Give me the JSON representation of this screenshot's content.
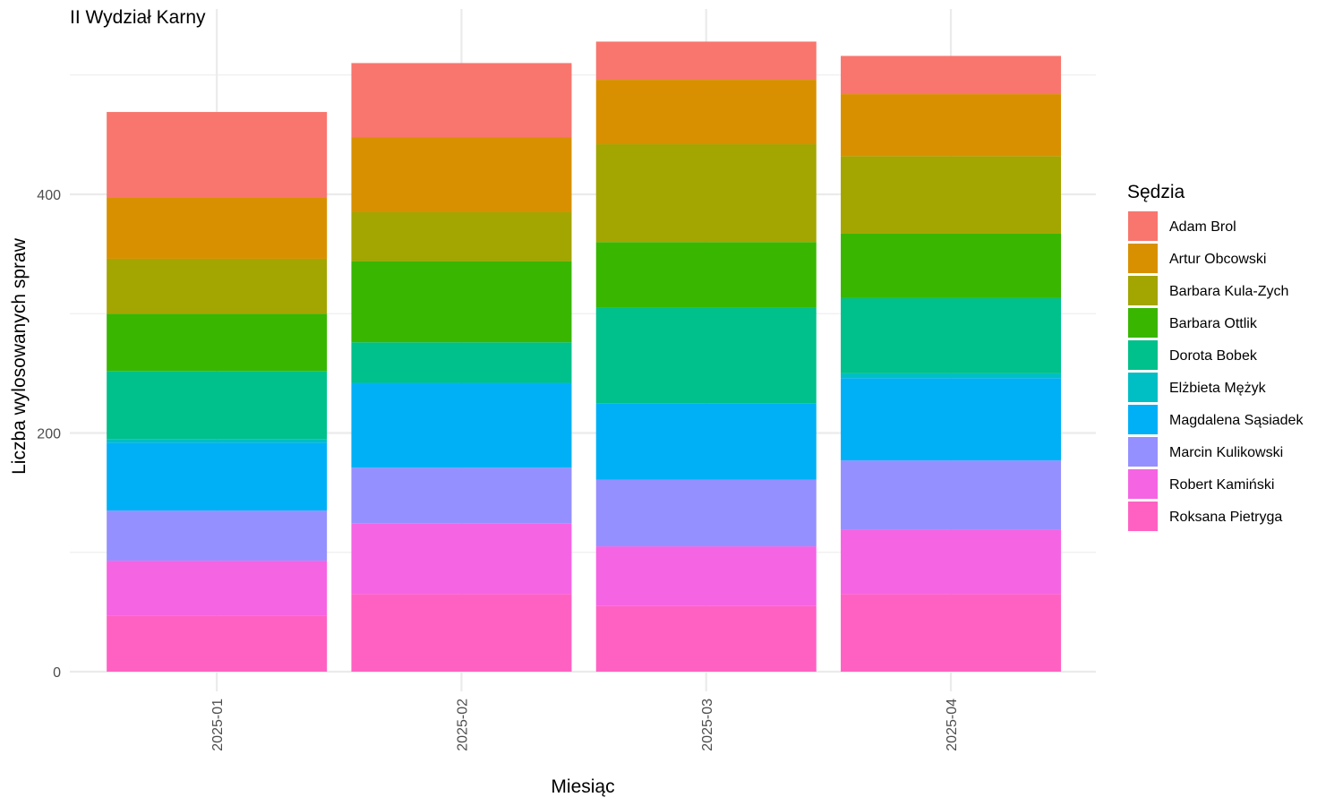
{
  "chart_data": {
    "type": "bar",
    "stacked": true,
    "title": "II Wydział Karny",
    "xlabel": "Miesiąc",
    "ylabel": "Liczba wylosowanych spraw",
    "ylim": [
      0,
      555
    ],
    "yticks": [
      0,
      200,
      400
    ],
    "grid": true,
    "legend_title": "Sędzia",
    "legend_position": "right",
    "categories": [
      "2025-01",
      "2025-02",
      "2025-03",
      "2025-04"
    ],
    "series": [
      {
        "name": "Roksana Pietryga",
        "color": "#FF61C3",
        "values": [
          47,
          65,
          55,
          65
        ]
      },
      {
        "name": "Robert Kamiński",
        "color": "#F564E3",
        "values": [
          46,
          59,
          50,
          54
        ]
      },
      {
        "name": "Marcin Kulikowski",
        "color": "#9590FF",
        "values": [
          42,
          47,
          56,
          58
        ]
      },
      {
        "name": "Magdalena Sąsiadek",
        "color": "#00B0F6",
        "values": [
          57,
          71,
          64,
          69
        ]
      },
      {
        "name": "Elżbieta Mężyk",
        "color": "#00BFC4",
        "values": [
          3,
          0,
          0,
          4
        ]
      },
      {
        "name": "Dorota Bobek",
        "color": "#00C08B",
        "values": [
          57,
          34,
          80,
          63
        ]
      },
      {
        "name": "Barbara Ottlik",
        "color": "#39B600",
        "values": [
          48,
          68,
          55,
          54
        ]
      },
      {
        "name": "Barbara Kula-Zych",
        "color": "#A3A500",
        "values": [
          46,
          41,
          82,
          65
        ]
      },
      {
        "name": "Artur Obcowski",
        "color": "#D89000",
        "values": [
          51,
          63,
          54,
          52
        ]
      },
      {
        "name": "Adam Brol",
        "color": "#F8766D",
        "values": [
          72,
          62,
          32,
          32
        ]
      }
    ],
    "legend_order": [
      "Adam Brol",
      "Artur Obcowski",
      "Barbara Kula-Zych",
      "Barbara Ottlik",
      "Dorota Bobek",
      "Elżbieta Mężyk",
      "Magdalena Sąsiadek",
      "Marcin Kulikowski",
      "Robert Kamiński",
      "Roksana Pietryga"
    ]
  }
}
